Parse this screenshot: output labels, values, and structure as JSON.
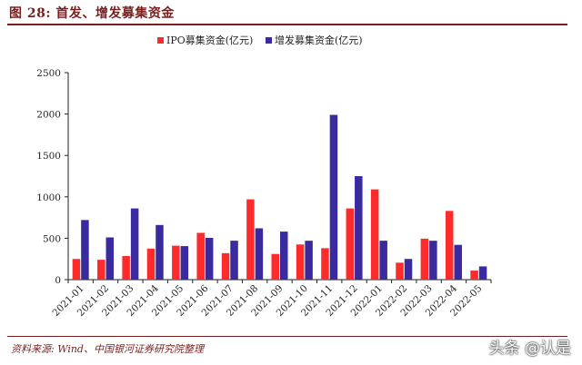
{
  "figure": {
    "title": "图 28: 首发、增发募集资金",
    "source": "资料来源: Wind、中国银河证券研究院整理",
    "watermark": "头条 @认是"
  },
  "colors": {
    "ipo": "#ff2b2b",
    "seo": "#3a2aa0",
    "axis": "#222222",
    "accent": "#7a1e1e"
  },
  "chart_data": {
    "type": "bar",
    "title": "",
    "xlabel": "",
    "ylabel": "",
    "ylim": [
      0,
      2500
    ],
    "yticks": [
      0,
      500,
      1000,
      1500,
      2000,
      2500
    ],
    "grid": false,
    "legend_position": "top-center",
    "categories": [
      "2021-01",
      "2021-02",
      "2021-03",
      "2021-04",
      "2021-05",
      "2021-06",
      "2021-07",
      "2021-08",
      "2021-09",
      "2021-10",
      "2021-11",
      "2021-12",
      "2022-01",
      "2022-02",
      "2022-03",
      "2022-04",
      "2022-05"
    ],
    "series": [
      {
        "name": "IPO募集资金(亿元)",
        "values": [
          250,
          240,
          285,
          375,
          410,
          565,
          320,
          970,
          310,
          425,
          380,
          860,
          1090,
          205,
          495,
          830,
          110
        ]
      },
      {
        "name": "增发募集资金(亿元)",
        "values": [
          720,
          510,
          860,
          660,
          405,
          505,
          470,
          620,
          580,
          470,
          1990,
          1250,
          470,
          250,
          470,
          420,
          160
        ]
      }
    ]
  }
}
